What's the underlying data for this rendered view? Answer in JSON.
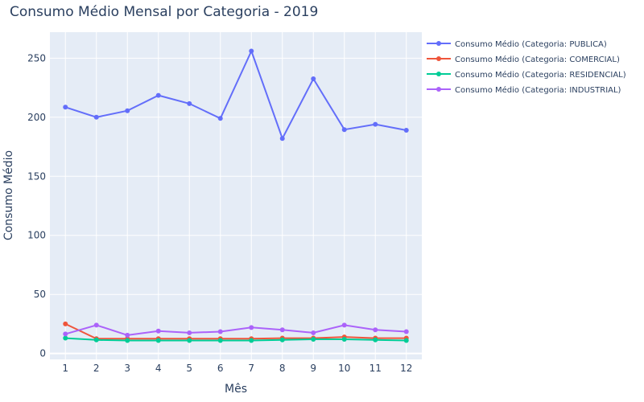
{
  "chart_data": {
    "type": "line",
    "title": "Consumo Médio Mensal por Categoria - 2019",
    "xlabel": "Mês",
    "ylabel": "Consumo Médio",
    "x": [
      1,
      2,
      3,
      4,
      5,
      6,
      7,
      8,
      9,
      10,
      11,
      12
    ],
    "x_ticks": [
      "1",
      "2",
      "3",
      "4",
      "5",
      "6",
      "7",
      "8",
      "9",
      "10",
      "11",
      "12"
    ],
    "xlim": [
      0.5,
      12.5
    ],
    "ylim": [
      -5,
      272
    ],
    "y_ticks": [
      0,
      50,
      100,
      150,
      200,
      250
    ],
    "y_tick_labels": [
      "0",
      "50",
      "100",
      "150",
      "200",
      "250"
    ],
    "grid": true,
    "legend_position": "top-right",
    "series": [
      {
        "name": "Consumo Médio (Categoria: PUBLICA)",
        "color": "#636efa",
        "values": [
          208.5,
          200,
          205.5,
          218.5,
          211.5,
          199,
          256,
          182,
          232.5,
          189.5,
          194,
          189
        ]
      },
      {
        "name": "Consumo Médio (Categoria: COMERCIAL)",
        "color": "#ef553b",
        "values": [
          25,
          12.5,
          12.5,
          12.5,
          12.5,
          12.5,
          12.5,
          13,
          13,
          14,
          13,
          13
        ]
      },
      {
        "name": "Consumo Médio (Categoria: RESIDENCIAL)",
        "color": "#00cc96",
        "values": [
          13,
          11.5,
          11,
          11,
          11,
          11,
          11,
          11.5,
          12,
          12,
          11.5,
          11
        ]
      },
      {
        "name": "Consumo Médio (Categoria: INDUSTRIAL)",
        "color": "#ab63fa",
        "values": [
          16.5,
          24,
          15.5,
          19,
          17.5,
          18.5,
          22,
          20,
          17.5,
          24,
          20,
          18.5
        ]
      }
    ]
  }
}
